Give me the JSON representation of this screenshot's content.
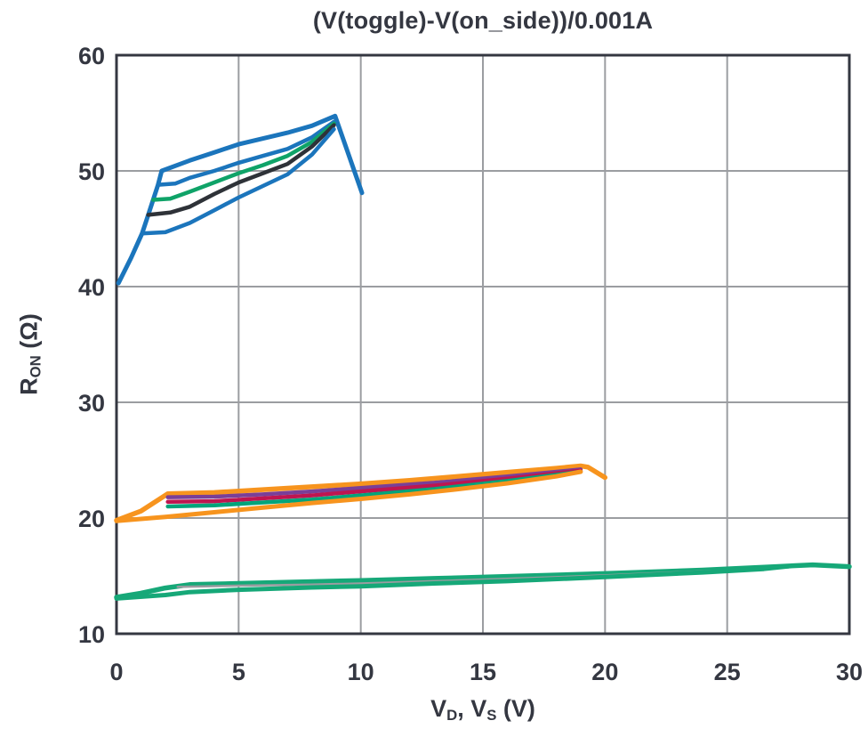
{
  "title": "(V(toggle)-V(on_side))/0.001A",
  "labels": {
    "ylabel": {
      "base": "R",
      "sub": "ON",
      "rest": " (Ω)"
    },
    "xlabel": {
      "v1": "V",
      "sub1": "D",
      "mid": ", V",
      "sub2": "S",
      "rest": " (V)"
    }
  },
  "chart_data": {
    "type": "line",
    "title": "(V(toggle)-V(on_side))/0.001A",
    "xlabel": "V_D, V_S (V)",
    "ylabel": "R_ON (Ω)",
    "xlim": [
      0,
      30
    ],
    "ylim": [
      10,
      60
    ],
    "xticks": [
      0,
      5,
      10,
      15,
      20,
      25,
      30
    ],
    "yticks": [
      10,
      20,
      30,
      40,
      50,
      60
    ],
    "grid": true,
    "legend": "none",
    "colors": {
      "axis": "#343741",
      "grid": "#9b9da1",
      "background": "#ffffff",
      "text": "#343741"
    },
    "series": [
      {
        "name": "family1-blue-outer-loop",
        "color": "#1b75bc",
        "width": 5,
        "points": [
          [
            0.08,
            40.3
          ],
          [
            0.6,
            42.5
          ],
          [
            1.05,
            44.6
          ],
          [
            1.3,
            46.2
          ],
          [
            1.5,
            47.5
          ],
          [
            1.7,
            48.8
          ],
          [
            1.85,
            50.0
          ],
          [
            3,
            50.9
          ],
          [
            4,
            51.6
          ],
          [
            5,
            52.3
          ],
          [
            6,
            52.8
          ],
          [
            7,
            53.3
          ],
          [
            8,
            53.9
          ],
          [
            8.95,
            54.75
          ],
          [
            10.05,
            48.1
          ]
        ]
      },
      {
        "name": "family1-blue-upper",
        "color": "#1b75bc",
        "width": 4.5,
        "points": [
          [
            1.7,
            48.8
          ],
          [
            2.4,
            48.9
          ],
          [
            3,
            49.4
          ],
          [
            4,
            50.0
          ],
          [
            5,
            50.7
          ],
          [
            6,
            51.3
          ],
          [
            7,
            51.9
          ],
          [
            8,
            52.9
          ],
          [
            8.9,
            54.25
          ]
        ]
      },
      {
        "name": "family1-green",
        "color": "#0fa368",
        "width": 4.5,
        "points": [
          [
            1.5,
            47.5
          ],
          [
            2.2,
            47.6
          ],
          [
            3,
            48.2
          ],
          [
            4,
            49.0
          ],
          [
            5,
            49.8
          ],
          [
            6,
            50.5
          ],
          [
            7,
            51.3
          ],
          [
            8,
            52.5
          ],
          [
            8.9,
            54.1
          ]
        ]
      },
      {
        "name": "family1-black",
        "color": "#2e3238",
        "width": 4.5,
        "points": [
          [
            1.3,
            46.2
          ],
          [
            2.2,
            46.4
          ],
          [
            3,
            46.9
          ],
          [
            4,
            48.0
          ],
          [
            5,
            49.0
          ],
          [
            6,
            49.8
          ],
          [
            7,
            50.6
          ],
          [
            8,
            52.1
          ],
          [
            8.9,
            53.95
          ]
        ]
      },
      {
        "name": "family1-blue-lower",
        "color": "#1b75bc",
        "width": 4.5,
        "points": [
          [
            1.05,
            44.6
          ],
          [
            2,
            44.7
          ],
          [
            3,
            45.5
          ],
          [
            4,
            46.6
          ],
          [
            5,
            47.7
          ],
          [
            6,
            48.7
          ],
          [
            7,
            49.7
          ],
          [
            8,
            51.4
          ],
          [
            8.9,
            53.6
          ]
        ]
      },
      {
        "name": "family2-orange-outer-loop",
        "color": "#f7941e",
        "width": 5.5,
        "points": [
          [
            0,
            19.8
          ],
          [
            1,
            20.6
          ],
          [
            2.1,
            22.1
          ],
          [
            4,
            22.2
          ],
          [
            6,
            22.45
          ],
          [
            8,
            22.7
          ],
          [
            10,
            22.95
          ],
          [
            12,
            23.25
          ],
          [
            14,
            23.6
          ],
          [
            16,
            23.95
          ],
          [
            18,
            24.3
          ],
          [
            19,
            24.5
          ],
          [
            19.3,
            24.4
          ],
          [
            20,
            23.5
          ]
        ]
      },
      {
        "name": "family2-purple",
        "color": "#7a3f98",
        "width": 4.5,
        "points": [
          [
            2.1,
            21.8
          ],
          [
            4,
            21.85
          ],
          [
            6,
            22.05
          ],
          [
            8,
            22.3
          ],
          [
            10,
            22.6
          ],
          [
            13,
            23.05
          ],
          [
            16,
            23.6
          ],
          [
            19,
            24.2
          ]
        ]
      },
      {
        "name": "family2-crimson",
        "color": "#be1550",
        "width": 4.5,
        "points": [
          [
            2.1,
            21.4
          ],
          [
            4,
            21.45
          ],
          [
            6,
            21.7
          ],
          [
            8,
            21.95
          ],
          [
            10,
            22.3
          ],
          [
            13,
            22.8
          ],
          [
            16,
            23.4
          ],
          [
            19,
            24.1
          ]
        ]
      },
      {
        "name": "family2-teal",
        "color": "#00a47a",
        "width": 4.5,
        "points": [
          [
            2.1,
            21.0
          ],
          [
            4,
            21.1
          ],
          [
            6,
            21.35
          ],
          [
            8,
            21.6
          ],
          [
            10,
            21.95
          ],
          [
            13,
            22.5
          ],
          [
            16,
            23.2
          ],
          [
            19,
            24.0
          ]
        ]
      },
      {
        "name": "family2-orange-lower",
        "color": "#f7941e",
        "width": 5,
        "points": [
          [
            0,
            19.75
          ],
          [
            2,
            20.1
          ],
          [
            4,
            20.5
          ],
          [
            6,
            20.9
          ],
          [
            8,
            21.3
          ],
          [
            10,
            21.65
          ],
          [
            12,
            22.05
          ],
          [
            14,
            22.5
          ],
          [
            16,
            23.0
          ],
          [
            18,
            23.6
          ],
          [
            19,
            24.0
          ]
        ]
      },
      {
        "name": "family3-green-upper",
        "color": "#16a878",
        "width": 5.5,
        "points": [
          [
            0,
            13.15
          ],
          [
            1,
            13.5
          ],
          [
            2,
            13.95
          ],
          [
            3,
            14.25
          ],
          [
            5,
            14.35
          ],
          [
            8,
            14.5
          ],
          [
            10,
            14.6
          ],
          [
            13,
            14.78
          ],
          [
            16,
            14.95
          ],
          [
            20,
            15.2
          ],
          [
            24,
            15.5
          ],
          [
            27,
            15.8
          ],
          [
            28.5,
            15.95
          ],
          [
            30,
            15.8
          ]
        ]
      },
      {
        "name": "family3-gray",
        "color": "#9a9ca0",
        "width": 2.5,
        "points": [
          [
            2.5,
            14.05
          ],
          [
            5,
            14.15
          ],
          [
            8,
            14.25
          ],
          [
            10,
            14.35
          ],
          [
            13,
            14.55
          ],
          [
            16,
            14.75
          ],
          [
            20,
            15.05
          ],
          [
            24,
            15.4
          ],
          [
            26,
            15.55
          ]
        ]
      },
      {
        "name": "family3-green-lower",
        "color": "#16a878",
        "width": 5,
        "points": [
          [
            0,
            13.05
          ],
          [
            2,
            13.35
          ],
          [
            3,
            13.6
          ],
          [
            5,
            13.8
          ],
          [
            8,
            14.0
          ],
          [
            10,
            14.1
          ],
          [
            13,
            14.35
          ],
          [
            16,
            14.55
          ],
          [
            20,
            14.9
          ],
          [
            24,
            15.3
          ],
          [
            26.5,
            15.6
          ],
          [
            27.5,
            15.82
          ]
        ]
      }
    ]
  }
}
